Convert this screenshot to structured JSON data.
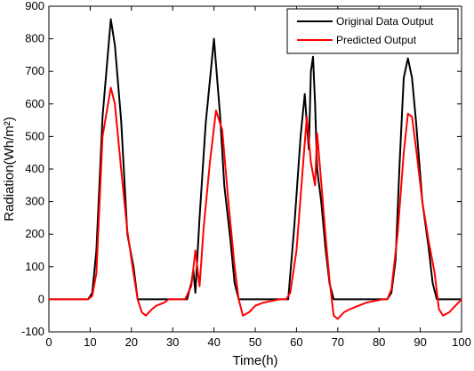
{
  "chart_data": {
    "type": "line",
    "xlabel": "Time(h)",
    "ylabel": "Radiation(Wh/m²)",
    "xlim": [
      0,
      100
    ],
    "ylim": [
      -100,
      900
    ],
    "xticks": [
      "0",
      "10",
      "20",
      "30",
      "40",
      "50",
      "60",
      "70",
      "80",
      "90",
      "100"
    ],
    "yticks": [
      "-100",
      "0",
      "100",
      "200",
      "300",
      "400",
      "500",
      "600",
      "700",
      "800",
      "900"
    ],
    "grid": false,
    "legend_position": "top-right",
    "series": [
      {
        "name": "Original Data Output",
        "color": "#000000",
        "x": [
          0,
          9.5,
          10.5,
          11.5,
          13,
          15,
          16,
          17.5,
          19,
          20.5,
          21.5,
          22,
          23,
          33.5,
          34.5,
          35,
          35.5,
          36.5,
          38,
          40,
          41.5,
          42.5,
          44,
          45,
          46,
          57.5,
          58,
          59.5,
          61,
          62,
          62.5,
          63,
          63.5,
          64,
          64.5,
          65,
          66,
          67,
          68,
          69,
          82,
          83,
          84,
          85,
          86,
          87,
          88,
          89,
          90.5,
          92,
          93,
          94,
          100
        ],
        "y": [
          0,
          0,
          20,
          150,
          560,
          860,
          780,
          550,
          200,
          100,
          0,
          0,
          0,
          0,
          50,
          90,
          20,
          250,
          540,
          800,
          560,
          350,
          180,
          50,
          0,
          0,
          0,
          230,
          500,
          630,
          540,
          460,
          700,
          745,
          600,
          400,
          300,
          160,
          50,
          0,
          0,
          20,
          120,
          420,
          680,
          740,
          680,
          540,
          300,
          160,
          50,
          0,
          0
        ]
      },
      {
        "name": "Predicted Output",
        "color": "#ff0000",
        "x": [
          0,
          9.5,
          10.5,
          11.5,
          13,
          15,
          16,
          17.5,
          19,
          20.5,
          21.5,
          22.5,
          23.5,
          25,
          26,
          28,
          29,
          31,
          33,
          34.5,
          35.5,
          36.5,
          37.5,
          39,
          40.5,
          42,
          43.5,
          45,
          46,
          47,
          48.5,
          50,
          52,
          54,
          56,
          57.5,
          58.5,
          60,
          61.5,
          62.5,
          63.5,
          64.5,
          65,
          66,
          67,
          68,
          69,
          70,
          71.5,
          73,
          75,
          77,
          79,
          81,
          82,
          83,
          84.5,
          86,
          87,
          88,
          89,
          90.5,
          92,
          93.5,
          94.5,
          95.5,
          97,
          98.5,
          100
        ],
        "y": [
          0,
          0,
          10,
          80,
          500,
          650,
          600,
          400,
          210,
          80,
          0,
          -40,
          -50,
          -30,
          -20,
          -10,
          0,
          0,
          0,
          40,
          150,
          40,
          220,
          420,
          580,
          520,
          300,
          100,
          0,
          -50,
          -40,
          -20,
          -10,
          -5,
          0,
          0,
          20,
          150,
          400,
          560,
          420,
          350,
          510,
          360,
          200,
          60,
          -50,
          -60,
          -40,
          -30,
          -20,
          -10,
          -5,
          0,
          0,
          30,
          200,
          450,
          570,
          560,
          460,
          300,
          180,
          80,
          -30,
          -50,
          -40,
          -20,
          0
        ]
      }
    ]
  }
}
